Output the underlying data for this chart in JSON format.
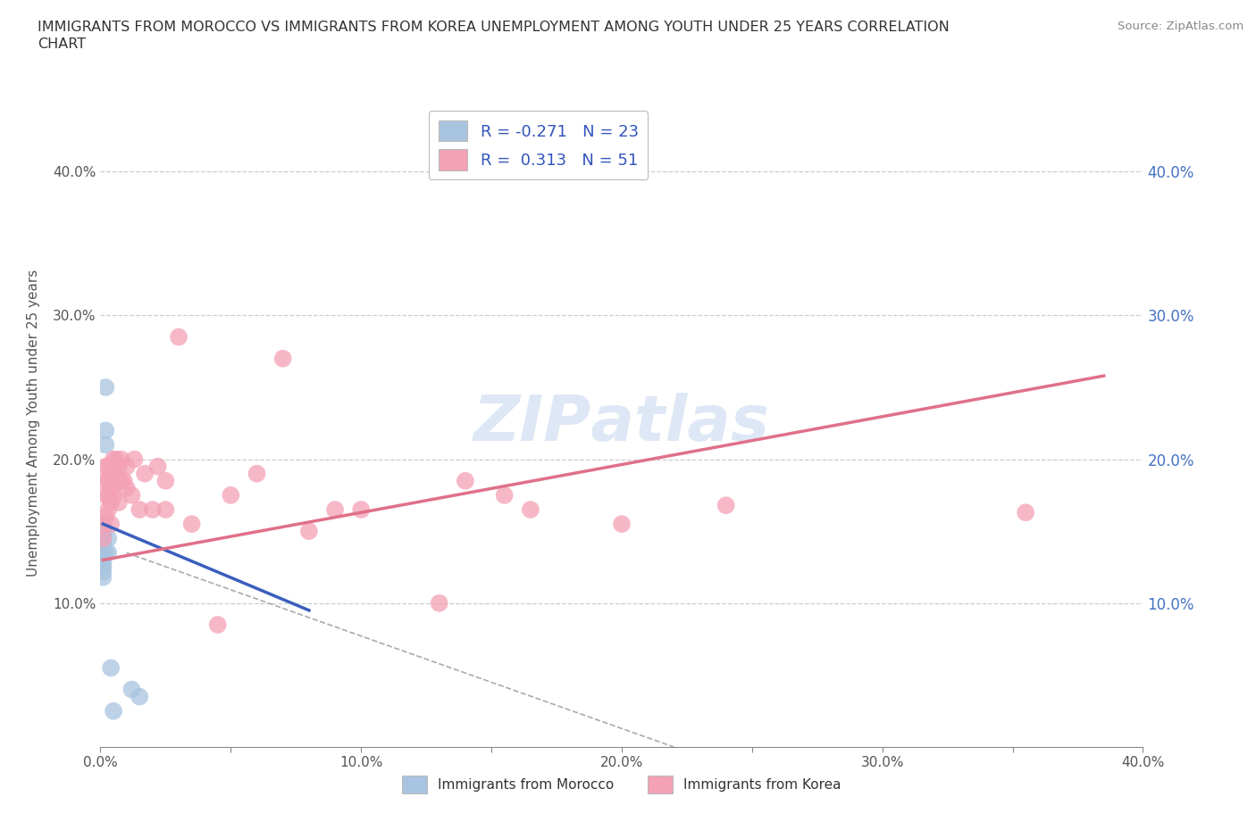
{
  "title_line1": "IMMIGRANTS FROM MOROCCO VS IMMIGRANTS FROM KOREA UNEMPLOYMENT AMONG YOUTH UNDER 25 YEARS CORRELATION",
  "title_line2": "CHART",
  "source_text": "Source: ZipAtlas.com",
  "ylabel": "Unemployment Among Youth under 25 years",
  "xlim": [
    0.0,
    0.4
  ],
  "ylim": [
    0.0,
    0.45
  ],
  "xtick_labels": [
    "0.0%",
    "",
    "10.0%",
    "",
    "20.0%",
    "",
    "30.0%",
    "",
    "40.0%"
  ],
  "xtick_values": [
    0.0,
    0.05,
    0.1,
    0.15,
    0.2,
    0.25,
    0.3,
    0.35,
    0.4
  ],
  "ytick_values_left": [
    0.0,
    0.1,
    0.2,
    0.3,
    0.4
  ],
  "ytick_labels_left": [
    "",
    "10.0%",
    "20.0%",
    "30.0%",
    "40.0%"
  ],
  "ytick_values_right": [
    0.1,
    0.2,
    0.3,
    0.4
  ],
  "ytick_labels_right": [
    "10.0%",
    "20.0%",
    "30.0%",
    "40.0%"
  ],
  "morocco_color": "#a8c4e0",
  "korea_color": "#f4a0b5",
  "morocco_R": -0.271,
  "morocco_N": 23,
  "korea_R": 0.313,
  "korea_N": 51,
  "morocco_trend_color": "#3a5ebd",
  "korea_trend_color": "#e07088",
  "morocco_trend_x": [
    0.001,
    0.08
  ],
  "morocco_trend_y": [
    0.155,
    0.095
  ],
  "korea_trend_x": [
    0.001,
    0.385
  ],
  "korea_trend_y": [
    0.13,
    0.258
  ],
  "diag_line_x": [
    0.01,
    0.22
  ],
  "diag_line_y": [
    0.135,
    0.0
  ],
  "morocco_points_x": [
    0.001,
    0.001,
    0.001,
    0.001,
    0.001,
    0.001,
    0.001,
    0.001,
    0.001,
    0.001,
    0.001,
    0.001,
    0.001,
    0.002,
    0.002,
    0.002,
    0.002,
    0.003,
    0.003,
    0.004,
    0.005,
    0.012,
    0.015
  ],
  "morocco_points_y": [
    0.155,
    0.15,
    0.148,
    0.145,
    0.142,
    0.14,
    0.138,
    0.135,
    0.132,
    0.128,
    0.125,
    0.122,
    0.118,
    0.25,
    0.22,
    0.21,
    0.135,
    0.145,
    0.135,
    0.055,
    0.025,
    0.04,
    0.035
  ],
  "korea_points_x": [
    0.001,
    0.001,
    0.002,
    0.002,
    0.002,
    0.002,
    0.003,
    0.003,
    0.003,
    0.003,
    0.004,
    0.004,
    0.004,
    0.004,
    0.005,
    0.005,
    0.005,
    0.006,
    0.006,
    0.007,
    0.007,
    0.007,
    0.008,
    0.008,
    0.009,
    0.01,
    0.01,
    0.012,
    0.013,
    0.015,
    0.017,
    0.02,
    0.022,
    0.025,
    0.025,
    0.03,
    0.035,
    0.045,
    0.05,
    0.06,
    0.07,
    0.08,
    0.09,
    0.1,
    0.13,
    0.14,
    0.155,
    0.165,
    0.2,
    0.24,
    0.355
  ],
  "korea_points_y": [
    0.155,
    0.145,
    0.195,
    0.185,
    0.175,
    0.16,
    0.195,
    0.185,
    0.175,
    0.165,
    0.19,
    0.18,
    0.17,
    0.155,
    0.2,
    0.19,
    0.175,
    0.2,
    0.185,
    0.195,
    0.185,
    0.17,
    0.2,
    0.185,
    0.185,
    0.195,
    0.18,
    0.175,
    0.2,
    0.165,
    0.19,
    0.165,
    0.195,
    0.185,
    0.165,
    0.285,
    0.155,
    0.085,
    0.175,
    0.19,
    0.27,
    0.15,
    0.165,
    0.165,
    0.1,
    0.185,
    0.175,
    0.165,
    0.155,
    0.168,
    0.163
  ],
  "watermark_text": "ZIP​atlas",
  "bottom_legend_labels": [
    "Immigrants from Morocco",
    "Immigrants from Korea"
  ]
}
